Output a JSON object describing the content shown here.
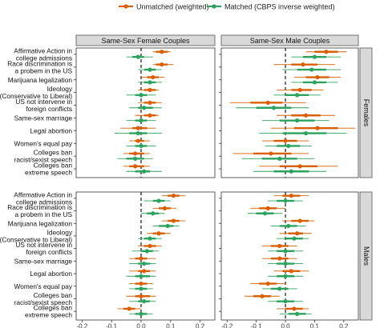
{
  "chart_data": {
    "type": "scatter",
    "subtype": "coefficient-plot",
    "title": "",
    "legend": {
      "placement": "top-center",
      "entries": [
        {
          "name": "Unmatched (weighted)",
          "color": "#d95f02"
        },
        {
          "name": "Matched (CBPS inverse weighted)",
          "color": "#2ca25f"
        }
      ]
    },
    "column_panels": [
      "Same-Sex Female Couples",
      "Same-Sex Male Couples"
    ],
    "row_panels": [
      "Females",
      "Males"
    ],
    "categories": [
      "Affirmative Action in\ncollege admissions",
      "Race discrimination is\na probem in the US",
      "Marijuana legalization",
      "Ideology\n(Conservative to Liberal)",
      "US not intervene in\nforeign conflicts",
      "Same-sex marriage",
      "Legal abortion",
      "Women's equal pay",
      "Colleges ban\nracist/sexist speech",
      "Colleges ban\nextreme speech"
    ],
    "xticks": [
      "-0.2",
      "-0.1",
      "0.0",
      "0.1",
      "0.2"
    ],
    "xlim": [
      -0.22,
      0.25
    ],
    "reference_line": 0,
    "series_names": [
      "Unmatched (weighted)",
      "Matched (CBPS inverse weighted)"
    ],
    "panels": [
      {
        "col": 0,
        "row": 0,
        "unmatched": [
          {
            "est": 0.07,
            "thick": [
              0.05,
              0.09
            ],
            "thin": [
              0.04,
              0.1
            ]
          },
          {
            "est": 0.07,
            "thick": [
              0.05,
              0.09
            ],
            "thin": [
              0.04,
              0.11
            ]
          },
          {
            "est": 0.04,
            "thick": [
              0.02,
              0.06
            ],
            "thin": [
              0.0,
              0.08
            ]
          },
          {
            "est": 0.03,
            "thick": [
              0.01,
              0.05
            ],
            "thin": [
              -0.01,
              0.06
            ]
          },
          {
            "est": 0.03,
            "thick": [
              0.01,
              0.05
            ],
            "thin": [
              -0.01,
              0.07
            ]
          },
          {
            "est": 0.03,
            "thick": [
              0.01,
              0.05
            ],
            "thin": [
              -0.02,
              0.06
            ]
          },
          {
            "est": -0.01,
            "thick": [
              -0.03,
              0.02
            ],
            "thin": [
              -0.07,
              0.05
            ]
          },
          {
            "est": -0.01,
            "thick": [
              -0.02,
              0.01
            ],
            "thin": [
              -0.04,
              0.03
            ]
          },
          {
            "est": -0.02,
            "thick": [
              -0.04,
              0.01
            ],
            "thin": [
              -0.06,
              0.03
            ]
          },
          {
            "est": -0.02,
            "thick": [
              -0.04,
              0.01
            ],
            "thin": [
              -0.06,
              0.03
            ]
          }
        ],
        "matched": [
          {
            "est": -0.01,
            "thick": [
              -0.03,
              0.01
            ],
            "thin": [
              -0.05,
              0.04
            ]
          },
          {
            "est": 0.03,
            "thick": [
              0.01,
              0.05
            ],
            "thin": [
              -0.01,
              0.07
            ]
          },
          {
            "est": 0.03,
            "thick": [
              0.01,
              0.05
            ],
            "thin": [
              -0.01,
              0.07
            ]
          },
          {
            "est": 0.0,
            "thick": [
              -0.02,
              0.02
            ],
            "thin": [
              -0.05,
              0.05
            ]
          },
          {
            "est": 0.01,
            "thick": [
              -0.01,
              0.04
            ],
            "thin": [
              -0.04,
              0.07
            ]
          },
          {
            "est": 0.0,
            "thick": [
              -0.02,
              0.02
            ],
            "thin": [
              -0.05,
              0.05
            ]
          },
          {
            "est": -0.01,
            "thick": [
              -0.04,
              0.02
            ],
            "thin": [
              -0.09,
              0.07
            ]
          },
          {
            "est": 0.0,
            "thick": [
              -0.02,
              0.02
            ],
            "thin": [
              -0.05,
              0.05
            ]
          },
          {
            "est": -0.02,
            "thick": [
              -0.05,
              0.01
            ],
            "thin": [
              -0.08,
              0.04
            ]
          },
          {
            "est": 0.01,
            "thick": [
              -0.02,
              0.03
            ],
            "thin": [
              -0.05,
              0.07
            ]
          }
        ]
      },
      {
        "col": 1,
        "row": 0,
        "unmatched": [
          {
            "est": 0.14,
            "thick": [
              0.1,
              0.18
            ],
            "thin": [
              0.07,
              0.21
            ]
          },
          {
            "est": 0.06,
            "thick": [
              0.02,
              0.11
            ],
            "thin": [
              -0.04,
              0.17
            ]
          },
          {
            "est": 0.11,
            "thick": [
              0.07,
              0.15
            ],
            "thin": [
              0.03,
              0.19
            ]
          },
          {
            "est": 0.05,
            "thick": [
              0.02,
              0.09
            ],
            "thin": [
              -0.03,
              0.13
            ]
          },
          {
            "est": -0.06,
            "thick": [
              -0.12,
              -0.01
            ],
            "thin": [
              -0.19,
              0.07
            ]
          },
          {
            "est": 0.07,
            "thick": [
              0.02,
              0.12
            ],
            "thin": [
              -0.03,
              0.17
            ]
          },
          {
            "est": 0.11,
            "thick": [
              0.03,
              0.18
            ],
            "thin": [
              -0.05,
              0.24
            ]
          },
          {
            "est": 0.0,
            "thick": [
              -0.04,
              0.04
            ],
            "thin": [
              -0.08,
              0.08
            ]
          },
          {
            "est": -0.05,
            "thick": [
              -0.11,
              0.02
            ],
            "thin": [
              -0.18,
              0.08
            ]
          },
          {
            "est": 0.05,
            "thick": [
              -0.02,
              0.11
            ],
            "thin": [
              -0.09,
              0.18
            ]
          }
        ],
        "matched": [
          {
            "est": 0.1,
            "thick": [
              0.06,
              0.14
            ],
            "thin": [
              0.02,
              0.19
            ]
          },
          {
            "est": 0.09,
            "thick": [
              0.04,
              0.14
            ],
            "thin": [
              -0.01,
              0.19
            ]
          },
          {
            "est": 0.1,
            "thick": [
              0.06,
              0.14
            ],
            "thin": [
              0.02,
              0.18
            ]
          },
          {
            "est": 0.04,
            "thick": [
              0.0,
              0.08
            ],
            "thin": [
              -0.04,
              0.12
            ]
          },
          {
            "est": -0.04,
            "thick": [
              -0.1,
              0.02
            ],
            "thin": [
              -0.17,
              0.08
            ]
          },
          {
            "est": 0.04,
            "thick": [
              -0.02,
              0.1
            ],
            "thin": [
              -0.08,
              0.15
            ]
          },
          {
            "est": 0.07,
            "thick": [
              -0.01,
              0.14
            ],
            "thin": [
              -0.09,
              0.21
            ]
          },
          {
            "est": 0.01,
            "thick": [
              -0.03,
              0.05
            ],
            "thin": [
              -0.07,
              0.09
            ]
          },
          {
            "est": -0.02,
            "thick": [
              -0.08,
              0.04
            ],
            "thin": [
              -0.15,
              0.1
            ]
          },
          {
            "est": 0.02,
            "thick": [
              -0.04,
              0.08
            ],
            "thin": [
              -0.11,
              0.14
            ]
          }
        ]
      },
      {
        "col": 0,
        "row": 1,
        "unmatched": [
          {
            "est": 0.11,
            "thick": [
              0.09,
              0.13
            ],
            "thin": [
              0.07,
              0.15
            ]
          },
          {
            "est": 0.08,
            "thick": [
              0.06,
              0.1
            ],
            "thin": [
              0.04,
              0.12
            ]
          },
          {
            "est": 0.11,
            "thick": [
              0.09,
              0.13
            ],
            "thin": [
              0.07,
              0.15
            ]
          },
          {
            "est": 0.06,
            "thick": [
              0.04,
              0.08
            ],
            "thin": [
              0.02,
              0.1
            ]
          },
          {
            "est": 0.03,
            "thick": [
              0.01,
              0.05
            ],
            "thin": [
              -0.01,
              0.07
            ]
          },
          {
            "est": 0.0,
            "thick": [
              -0.02,
              0.02
            ],
            "thin": [
              -0.04,
              0.05
            ]
          },
          {
            "est": 0.01,
            "thick": [
              -0.01,
              0.03
            ],
            "thin": [
              -0.04,
              0.05
            ]
          },
          {
            "est": 0.0,
            "thick": [
              -0.02,
              0.02
            ],
            "thin": [
              -0.04,
              0.04
            ]
          },
          {
            "est": 0.0,
            "thick": [
              -0.02,
              0.03
            ],
            "thin": [
              -0.05,
              0.05
            ]
          },
          {
            "est": -0.04,
            "thick": [
              -0.06,
              -0.02
            ],
            "thin": [
              -0.08,
              0.0
            ]
          }
        ],
        "matched": [
          {
            "est": 0.06,
            "thick": [
              0.04,
              0.08
            ],
            "thin": [
              0.01,
              0.1
            ]
          },
          {
            "est": 0.04,
            "thick": [
              0.02,
              0.06
            ],
            "thin": [
              0.0,
              0.08
            ]
          },
          {
            "est": 0.09,
            "thick": [
              0.06,
              0.11
            ],
            "thin": [
              0.04,
              0.13
            ]
          },
          {
            "est": 0.03,
            "thick": [
              0.01,
              0.05
            ],
            "thin": [
              -0.01,
              0.07
            ]
          },
          {
            "est": 0.02,
            "thick": [
              0.0,
              0.04
            ],
            "thin": [
              -0.03,
              0.06
            ]
          },
          {
            "est": 0.01,
            "thick": [
              -0.01,
              0.03
            ],
            "thin": [
              -0.04,
              0.05
            ]
          },
          {
            "est": 0.0,
            "thick": [
              -0.02,
              0.03
            ],
            "thin": [
              -0.05,
              0.05
            ]
          },
          {
            "est": 0.0,
            "thick": [
              -0.02,
              0.02
            ],
            "thin": [
              -0.04,
              0.04
            ]
          },
          {
            "est": 0.01,
            "thick": [
              -0.01,
              0.03
            ],
            "thin": [
              -0.04,
              0.05
            ]
          },
          {
            "est": 0.0,
            "thick": [
              -0.02,
              0.02
            ],
            "thin": [
              -0.04,
              0.04
            ]
          }
        ]
      },
      {
        "col": 1,
        "row": 1,
        "unmatched": [
          {
            "est": 0.02,
            "thick": [
              -0.01,
              0.05
            ],
            "thin": [
              -0.04,
              0.08
            ]
          },
          {
            "est": -0.06,
            "thick": [
              -0.09,
              -0.03
            ],
            "thin": [
              -0.12,
              0.0
            ]
          },
          {
            "est": 0.05,
            "thick": [
              0.02,
              0.08
            ],
            "thin": [
              -0.01,
              0.1
            ]
          },
          {
            "est": 0.04,
            "thick": [
              0.01,
              0.06
            ],
            "thin": [
              -0.02,
              0.09
            ]
          },
          {
            "est": -0.02,
            "thick": [
              -0.05,
              0.01
            ],
            "thin": [
              -0.08,
              0.04
            ]
          },
          {
            "est": -0.02,
            "thick": [
              -0.05,
              0.01
            ],
            "thin": [
              -0.08,
              0.04
            ]
          },
          {
            "est": 0.02,
            "thick": [
              -0.01,
              0.05
            ],
            "thin": [
              -0.04,
              0.08
            ]
          },
          {
            "est": -0.06,
            "thick": [
              -0.09,
              -0.03
            ],
            "thin": [
              -0.12,
              0.0
            ]
          },
          {
            "est": -0.08,
            "thick": [
              -0.11,
              -0.05
            ],
            "thin": [
              -0.14,
              -0.02
            ]
          },
          {
            "est": 0.03,
            "thick": [
              0.0,
              0.06
            ],
            "thin": [
              -0.03,
              0.08
            ]
          }
        ],
        "matched": [
          {
            "est": 0.0,
            "thick": [
              -0.03,
              0.03
            ],
            "thin": [
              -0.06,
              0.06
            ]
          },
          {
            "est": -0.07,
            "thick": [
              -0.1,
              -0.04
            ],
            "thin": [
              -0.13,
              -0.01
            ]
          },
          {
            "est": 0.01,
            "thick": [
              -0.02,
              0.04
            ],
            "thin": [
              -0.05,
              0.07
            ]
          },
          {
            "est": 0.03,
            "thick": [
              0.0,
              0.06
            ],
            "thin": [
              -0.03,
              0.08
            ]
          },
          {
            "est": 0.0,
            "thick": [
              -0.03,
              0.03
            ],
            "thin": [
              -0.06,
              0.06
            ]
          },
          {
            "est": 0.0,
            "thick": [
              -0.03,
              0.03
            ],
            "thin": [
              -0.06,
              0.06
            ]
          },
          {
            "est": 0.0,
            "thick": [
              -0.03,
              0.03
            ],
            "thin": [
              -0.06,
              0.06
            ]
          },
          {
            "est": -0.02,
            "thick": [
              -0.05,
              0.01
            ],
            "thin": [
              -0.08,
              0.04
            ]
          },
          {
            "est": 0.0,
            "thick": [
              -0.03,
              0.03
            ],
            "thin": [
              -0.06,
              0.06
            ]
          },
          {
            "est": 0.04,
            "thick": [
              0.01,
              0.07
            ],
            "thin": [
              -0.02,
              0.09
            ]
          }
        ]
      }
    ]
  }
}
